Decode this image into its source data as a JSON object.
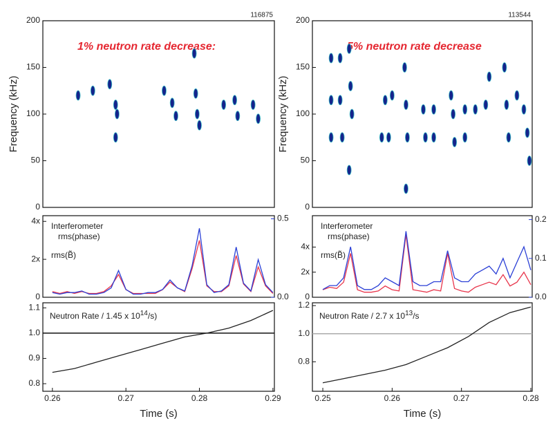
{
  "chart_data": [
    {
      "type": "scatter",
      "corner_label": "116875",
      "annotation": "1% neutron rate decrease:",
      "ylabel": "Frequency (kHz)",
      "x": [
        0.2635,
        0.2655,
        0.2678,
        0.2686,
        0.2688,
        0.2686,
        0.2752,
        0.2763,
        0.2768,
        0.2793,
        0.2795,
        0.2797,
        0.28,
        0.2833,
        0.2848,
        0.2852,
        0.2873,
        0.288
      ],
      "values": [
        120,
        125,
        132,
        110,
        100,
        75,
        125,
        112,
        98,
        165,
        122,
        100,
        88,
        110,
        115,
        98,
        110,
        95
      ],
      "color": "#15248c",
      "xlim": [
        0.2587,
        0.2902
      ],
      "ylim": [
        0,
        200
      ],
      "yticks": [
        0,
        50,
        100,
        150,
        200
      ]
    },
    {
      "type": "line",
      "ylim": [
        0,
        4.3
      ],
      "yticks": [
        {
          "value": 0,
          "label": "0"
        },
        {
          "value": 2,
          "label": "2x"
        },
        {
          "value": 4,
          "label": "4x"
        }
      ],
      "y2lim": [
        0,
        0.52
      ],
      "y2ticks": [
        {
          "value": 0,
          "label": "0.0"
        },
        {
          "value": 0.5,
          "label": "0.5"
        }
      ],
      "xlim": [
        0.2587,
        0.2902
      ],
      "x": [
        0.26,
        0.261,
        0.262,
        0.263,
        0.264,
        0.265,
        0.266,
        0.267,
        0.268,
        0.269,
        0.27,
        0.271,
        0.272,
        0.273,
        0.274,
        0.275,
        0.276,
        0.277,
        0.278,
        0.279,
        0.28,
        0.281,
        0.282,
        0.283,
        0.284,
        0.285,
        0.286,
        0.287,
        0.288,
        0.289,
        0.29
      ],
      "series": [
        {
          "name": [
            "Interferometer",
            "rms(phase)"
          ],
          "color": "#e8344a",
          "values": [
            0.3,
            0.2,
            0.3,
            0.2,
            0.3,
            0.2,
            0.2,
            0.3,
            0.6,
            1.2,
            0.4,
            0.2,
            0.2,
            0.2,
            0.2,
            0.4,
            0.8,
            0.5,
            0.3,
            1.5,
            3.0,
            0.6,
            0.3,
            0.3,
            0.6,
            2.2,
            0.7,
            0.3,
            1.6,
            0.6,
            0.2
          ]
        },
        {
          "name": [
            "rms(B̃)"
          ],
          "color": "#2a3fd6",
          "axis": "y2",
          "values": [
            0.03,
            0.02,
            0.03,
            0.03,
            0.04,
            0.02,
            0.02,
            0.03,
            0.06,
            0.17,
            0.05,
            0.02,
            0.02,
            0.03,
            0.03,
            0.05,
            0.11,
            0.06,
            0.04,
            0.2,
            0.44,
            0.08,
            0.03,
            0.04,
            0.08,
            0.32,
            0.09,
            0.04,
            0.24,
            0.08,
            0.03
          ]
        }
      ]
    },
    {
      "type": "line",
      "xlabel": "Time (s)",
      "label_text": "Neutron Rate / 1.45 x 10",
      "label_exponent": "14",
      "label_suffix": "/s)",
      "xlim": [
        0.2587,
        0.2902
      ],
      "xticks": [
        0.26,
        0.27,
        0.28,
        0.29
      ],
      "ylim": [
        0.77,
        1.12
      ],
      "yticks": [
        0.8,
        0.9,
        {
          "value": 1,
          "label": "1.0"
        },
        1.1
      ],
      "reference_line": 1,
      "x": [
        0.26,
        0.263,
        0.266,
        0.269,
        0.272,
        0.275,
        0.278,
        0.281,
        0.284,
        0.287,
        0.29
      ],
      "series": [
        {
          "color": "#222222",
          "values": [
            0.845,
            0.86,
            0.885,
            0.91,
            0.935,
            0.96,
            0.985,
            1.0,
            1.02,
            1.05,
            1.09
          ]
        }
      ]
    },
    {
      "type": "scatter",
      "corner_label": "113544",
      "annotation": "5% neutron rate decrease",
      "ylabel": "Frequency (kHz)",
      "x": [
        0.2512,
        0.2525,
        0.2512,
        0.2525,
        0.2512,
        0.2528,
        0.2538,
        0.254,
        0.2542,
        0.2538,
        0.2585,
        0.2595,
        0.259,
        0.26,
        0.2618,
        0.262,
        0.2622,
        0.262,
        0.2645,
        0.266,
        0.2648,
        0.266,
        0.2685,
        0.2688,
        0.269,
        0.2705,
        0.272,
        0.2735,
        0.2705,
        0.274,
        0.2762,
        0.2765,
        0.2768,
        0.278,
        0.279,
        0.2795,
        0.2798
      ],
      "values": [
        160,
        160,
        115,
        115,
        75,
        75,
        170,
        130,
        100,
        40,
        75,
        75,
        115,
        120,
        150,
        110,
        75,
        20,
        105,
        105,
        75,
        75,
        120,
        100,
        70,
        105,
        105,
        110,
        75,
        140,
        150,
        110,
        75,
        120,
        105,
        80,
        50
      ],
      "color": "#15248c",
      "xlim": [
        0.2485,
        0.2802
      ],
      "ylim": [
        0,
        200
      ],
      "yticks": [
        0,
        50,
        100,
        150,
        200
      ]
    },
    {
      "type": "line",
      "ylim": [
        0,
        6.5
      ],
      "yticks": [
        {
          "value": 0,
          "label": "0"
        },
        {
          "value": 2,
          "label": "2x"
        },
        {
          "value": 4,
          "label": "4x"
        }
      ],
      "y2lim": [
        0,
        0.21
      ],
      "y2ticks": [
        {
          "value": 0,
          "label": "0.0"
        },
        0.1,
        0.2
      ],
      "xlim": [
        0.2485,
        0.2802
      ],
      "x": [
        0.25,
        0.251,
        0.252,
        0.253,
        0.254,
        0.255,
        0.256,
        0.257,
        0.258,
        0.259,
        0.26,
        0.261,
        0.262,
        0.263,
        0.264,
        0.265,
        0.266,
        0.267,
        0.268,
        0.269,
        0.27,
        0.271,
        0.272,
        0.273,
        0.274,
        0.275,
        0.276,
        0.277,
        0.278,
        0.279,
        0.28
      ],
      "series": [
        {
          "name": [
            "Interferometer",
            "rms(phase)"
          ],
          "color": "#e8344a",
          "values": [
            0.6,
            0.8,
            0.7,
            1.2,
            3.5,
            0.6,
            0.4,
            0.4,
            0.5,
            0.9,
            0.6,
            0.5,
            5.0,
            0.6,
            0.5,
            0.4,
            0.6,
            0.5,
            3.5,
            0.7,
            0.5,
            0.4,
            0.8,
            1.0,
            1.2,
            1.0,
            1.8,
            0.9,
            1.2,
            2.0,
            1.0
          ]
        },
        {
          "name": [
            "rms(B̃)"
          ],
          "color": "#2a3fd6",
          "axis": "y2",
          "values": [
            0.02,
            0.03,
            0.03,
            0.05,
            0.13,
            0.03,
            0.02,
            0.02,
            0.03,
            0.05,
            0.04,
            0.03,
            0.17,
            0.04,
            0.03,
            0.03,
            0.04,
            0.04,
            0.12,
            0.05,
            0.04,
            0.04,
            0.06,
            0.07,
            0.08,
            0.06,
            0.1,
            0.05,
            0.09,
            0.13,
            0.07
          ]
        }
      ]
    },
    {
      "type": "line",
      "xlabel": "Time (s)",
      "label_text": "Neutron Rate / 2.7 x 10",
      "label_exponent": "13",
      "label_suffix": "/s",
      "xlim": [
        0.2485,
        0.2802
      ],
      "xticks": [
        0.25,
        0.26,
        0.27,
        0.28
      ],
      "ylim": [
        0.59,
        1.22
      ],
      "yticks": [
        0.8,
        {
          "value": 1,
          "label": "1.0"
        },
        1.2
      ],
      "reference_line": 1,
      "x": [
        0.25,
        0.253,
        0.256,
        0.259,
        0.262,
        0.265,
        0.268,
        0.271,
        0.274,
        0.277,
        0.28
      ],
      "series": [
        {
          "color": "#222222",
          "values": [
            0.65,
            0.68,
            0.71,
            0.74,
            0.78,
            0.84,
            0.9,
            0.98,
            1.08,
            1.15,
            1.19
          ]
        }
      ]
    }
  ]
}
